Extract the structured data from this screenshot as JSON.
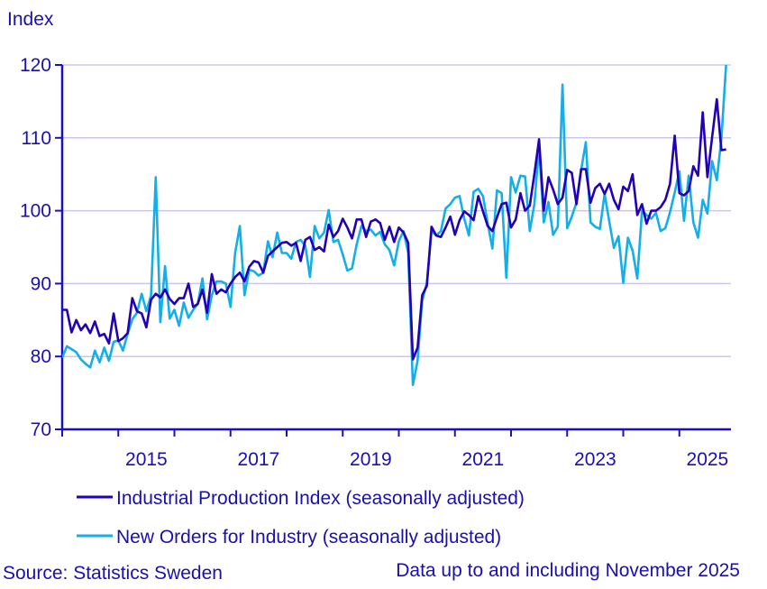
{
  "chart_data": {
    "type": "line",
    "ylabel": "Index",
    "ylim": [
      70,
      120
    ],
    "yticks": [
      70,
      80,
      90,
      100,
      110,
      120
    ],
    "x_start": "2014-01",
    "x_end": "2025-11",
    "x_frequency": "monthly",
    "xtick_labels": [
      "2015",
      "2017",
      "2019",
      "2021",
      "2023",
      "2025"
    ],
    "grid": "horizontal",
    "legend_placement": "bottom",
    "series": [
      {
        "name": "Industrial Production Index (seasonally adjusted)",
        "color": "#2200b4",
        "values": [
          86.4,
          86.4,
          83.3,
          85.0,
          83.6,
          84.4,
          83.2,
          84.8,
          82.8,
          83.1,
          81.8,
          85.9,
          82.1,
          82.5,
          83.2,
          88.0,
          86.2,
          85.9,
          84.0,
          87.8,
          88.6,
          88.1,
          89.2,
          87.9,
          87.2,
          88.0,
          88.0,
          90.0,
          86.8,
          87.2,
          89.2,
          86.0,
          91.3,
          88.6,
          89.2,
          88.8,
          90.0,
          90.9,
          91.5,
          90.3,
          92.3,
          93.1,
          92.9,
          91.5,
          93.8,
          94.4,
          95.0,
          95.6,
          95.7,
          95.2,
          95.6,
          93.1,
          96.0,
          96.4,
          94.6,
          95.0,
          94.4,
          98.1,
          96.4,
          97.2,
          98.9,
          97.7,
          96.2,
          98.8,
          98.8,
          96.4,
          98.5,
          98.8,
          98.3,
          96.0,
          97.8,
          95.7,
          97.7,
          97.0,
          95.6,
          79.6,
          81.2,
          88.4,
          89.7,
          97.8,
          96.6,
          96.4,
          97.7,
          99.2,
          96.7,
          98.7,
          99.9,
          99.4,
          98.7,
          102.0,
          99.9,
          97.9,
          97.2,
          99.1,
          100.9,
          101.1,
          97.7,
          98.8,
          102.4,
          100.0,
          100.7,
          105.0,
          109.8,
          100.0,
          104.6,
          102.9,
          100.9,
          101.8,
          105.6,
          105.2,
          100.9,
          105.7,
          105.7,
          101.1,
          103.1,
          103.7,
          102.3,
          103.7,
          101.5,
          100.2,
          103.3,
          102.7,
          105.0,
          99.4,
          100.9,
          98.2,
          100.0,
          100.0,
          100.5,
          101.5,
          103.7,
          110.3,
          102.4,
          102.1,
          102.7,
          106.1,
          104.8,
          113.5,
          104.6,
          110.1,
          115.3,
          108.3,
          108.4
        ]
      },
      {
        "name": "New Orders for Industry (seasonally adjusted)",
        "color": "#14aee8",
        "values": [
          79.8,
          81.4,
          81.0,
          80.6,
          79.6,
          79.0,
          78.5,
          80.8,
          79.2,
          81.2,
          79.4,
          82.0,
          82.2,
          80.8,
          83.1,
          85.1,
          86.0,
          88.6,
          86.2,
          88.4,
          104.6,
          84.7,
          92.4,
          85.2,
          86.4,
          84.2,
          87.4,
          85.3,
          86.4,
          87.2,
          90.7,
          85.1,
          88.4,
          90.3,
          90.3,
          90.0,
          86.8,
          94.2,
          97.9,
          88.4,
          91.9,
          91.7,
          91.1,
          91.5,
          95.8,
          93.6,
          97.0,
          94.2,
          94.2,
          93.4,
          95.7,
          96.0,
          95.2,
          90.9,
          97.9,
          96.2,
          97.0,
          100.1,
          95.7,
          96.0,
          94.0,
          91.8,
          92.1,
          95.4,
          97.9,
          97.2,
          97.4,
          96.6,
          97.1,
          95.4,
          94.6,
          92.5,
          95.8,
          97.2,
          94.2,
          76.1,
          79.4,
          87.6,
          90.1,
          97.2,
          96.6,
          97.2,
          100.3,
          100.9,
          101.8,
          102.0,
          98.9,
          96.6,
          102.6,
          103.0,
          102.0,
          98.3,
          94.8,
          102.8,
          102.4,
          90.8,
          104.6,
          102.5,
          104.8,
          104.7,
          97.2,
          100.9,
          108.7,
          98.4,
          101.2,
          96.7,
          97.8,
          117.3,
          97.6,
          99.2,
          101.1,
          105.6,
          109.4,
          98.4,
          97.8,
          97.5,
          102.3,
          98.6,
          94.9,
          96.5,
          90.1,
          96.3,
          94.5,
          90.7,
          100.0,
          99.4,
          98.9,
          99.7,
          97.2,
          97.6,
          99.8,
          102.5,
          105.4,
          98.6,
          104.8,
          98.4,
          96.3,
          101.5,
          99.6,
          106.8,
          104.2,
          109.9,
          120.0
        ]
      }
    ]
  },
  "footer": {
    "source": "Source: Statistics Sweden",
    "note": "Data up to and including November 2025"
  },
  "colors": {
    "axis": "#1a0fc8",
    "grid": "#cbc6ef",
    "text": "#1a0fb0"
  }
}
